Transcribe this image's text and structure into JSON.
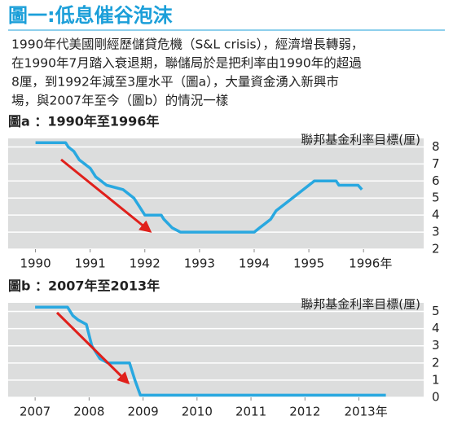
{
  "title": "圖一:低息催谷泡沫",
  "description": [
    "1990年代美國剛經歷儲貸危機（S&L crisis），經濟增長轉弱，",
    "在1990年7月踏入衰退期，聯儲局於是把利率由1990年的超過",
    "8厘，到1992年減至3厘水平（圖a），大量資金湧入新興市",
    "場，與2007年至今（圖b）的情況一樣"
  ],
  "chart_data": [
    {
      "type": "line",
      "title": "圖a ：1990年至1996年",
      "y_label": "聯邦基金利率目標(厘)",
      "x": [
        1990.0,
        1990.55,
        1990.6,
        1990.7,
        1990.8,
        1990.9,
        1991.0,
        1991.1,
        1991.2,
        1991.3,
        1991.6,
        1991.7,
        1991.8,
        1991.9,
        1992.0,
        1992.3,
        1992.35,
        1992.5,
        1992.65,
        1994.0,
        1994.1,
        1994.2,
        1994.3,
        1994.4,
        1994.6,
        1994.9,
        1995.1,
        1995.5,
        1995.55,
        1995.9,
        1995.97
      ],
      "series": [
        {
          "color": "#29a8e0",
          "values": [
            8.25,
            8.25,
            8.0,
            7.75,
            7.25,
            7.0,
            6.75,
            6.25,
            6.0,
            5.75,
            5.5,
            5.25,
            5.0,
            4.5,
            4.0,
            4.0,
            3.75,
            3.25,
            3.0,
            3.0,
            3.25,
            3.5,
            3.75,
            4.25,
            4.75,
            5.5,
            6.0,
            6.0,
            5.75,
            5.75,
            5.5
          ]
        }
      ],
      "xlim": [
        1989.5,
        1997.1
      ],
      "xticks": [
        1990,
        1991,
        1992,
        1993,
        1994,
        1995,
        {
          "value": 1996,
          "label": "1996年"
        }
      ],
      "ylim": [
        2,
        8.5
      ],
      "yticks": [
        2,
        3,
        4,
        5,
        6,
        7,
        8
      ],
      "grid": true
    },
    {
      "type": "line",
      "title": "圖b ：2007年至2013年",
      "y_label": "聯邦基金利率目標(厘)",
      "x": [
        2007.0,
        2007.6,
        2007.7,
        2007.8,
        2007.95,
        2008.05,
        2008.2,
        2008.35,
        2008.75,
        2008.8,
        2008.85,
        2008.95,
        2013.5
      ],
      "series": [
        {
          "color": "#29a8e0",
          "values": [
            5.25,
            5.25,
            4.75,
            4.5,
            4.25,
            3.0,
            2.25,
            2.0,
            2.0,
            1.5,
            1.0,
            0.125,
            0.125
          ]
        }
      ],
      "xlim": [
        2006.5,
        2014.2
      ],
      "xticks": [
        2007,
        2008,
        2009,
        2010,
        2011,
        2012,
        {
          "value": 2013,
          "label": "2013年"
        }
      ],
      "ylim": [
        0,
        5.5
      ],
      "yticks": [
        0,
        1,
        2,
        3,
        4,
        5
      ],
      "grid": true
    }
  ]
}
